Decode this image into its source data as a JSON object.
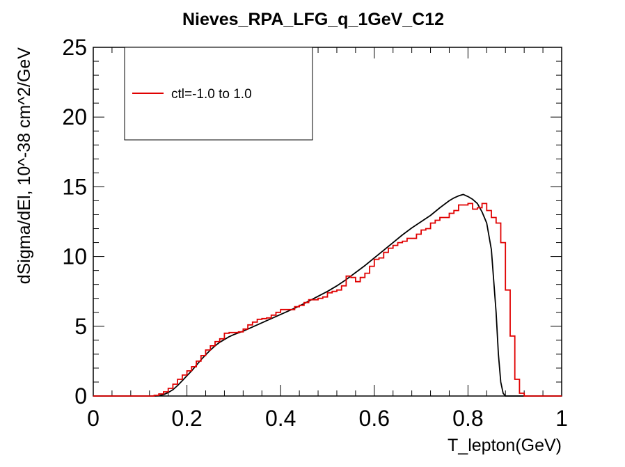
{
  "chart_data": {
    "type": "line",
    "title": "Nieves_RPA_LFG_q_1GeV_C12",
    "xlabel": "T_lepton(GeV)",
    "ylabel": "dSigma/dEl, 10^-38 cm^2/GeV",
    "xlim": [
      0,
      1
    ],
    "ylim": [
      0,
      25
    ],
    "x_ticks": [
      "0",
      "0.2",
      "0.4",
      "0.6",
      "0.8",
      "1"
    ],
    "y_ticks": [
      "0",
      "5",
      "10",
      "15",
      "20",
      "25"
    ],
    "grid": false,
    "legend_position": "top-left",
    "histogram_bin_width": 0.01,
    "series": [
      {
        "name": "ctl=-1.0 to 1.0",
        "style": "step",
        "color": "#e00000",
        "x_start": 0,
        "values": [
          0,
          0,
          0,
          0,
          0,
          0,
          0,
          0,
          0,
          0,
          0,
          0,
          0,
          0.05,
          0.15,
          0.3,
          0.55,
          0.85,
          1.2,
          1.5,
          1.8,
          2.1,
          2.5,
          2.9,
          3.3,
          3.6,
          3.9,
          4.1,
          4.5,
          4.55,
          4.55,
          4.6,
          4.8,
          5.1,
          5.3,
          5.5,
          5.55,
          5.6,
          5.8,
          6.0,
          6.2,
          6.2,
          6.2,
          6.4,
          6.5,
          6.7,
          6.9,
          6.9,
          7.0,
          7.1,
          7.4,
          7.5,
          7.6,
          7.9,
          8.6,
          8.5,
          8.2,
          8.5,
          8.8,
          9.3,
          9.8,
          9.9,
          10.3,
          10.6,
          10.8,
          11.0,
          11.1,
          11.3,
          11.3,
          11.6,
          11.9,
          12.0,
          12.4,
          12.6,
          12.8,
          12.8,
          13.1,
          13.3,
          13.7,
          13.7,
          13.8,
          13.4,
          13.5,
          13.8,
          13.3,
          12.8,
          12.4,
          11.0,
          7.6,
          4.3,
          1.2,
          0.2,
          0,
          0,
          0,
          0,
          0,
          0,
          0,
          0
        ]
      },
      {
        "style": "smooth",
        "color": "#000000",
        "points": [
          [
            0,
            0
          ],
          [
            0.13,
            0
          ],
          [
            0.14,
            0.02
          ],
          [
            0.15,
            0.1
          ],
          [
            0.16,
            0.25
          ],
          [
            0.17,
            0.45
          ],
          [
            0.18,
            0.75
          ],
          [
            0.19,
            1.1
          ],
          [
            0.2,
            1.45
          ],
          [
            0.21,
            1.8
          ],
          [
            0.22,
            2.2
          ],
          [
            0.23,
            2.6
          ],
          [
            0.24,
            2.95
          ],
          [
            0.25,
            3.3
          ],
          [
            0.26,
            3.6
          ],
          [
            0.27,
            3.85
          ],
          [
            0.28,
            4.05
          ],
          [
            0.29,
            4.25
          ],
          [
            0.3,
            4.4
          ],
          [
            0.32,
            4.65
          ],
          [
            0.34,
            4.95
          ],
          [
            0.36,
            5.25
          ],
          [
            0.38,
            5.55
          ],
          [
            0.4,
            5.85
          ],
          [
            0.42,
            6.15
          ],
          [
            0.44,
            6.45
          ],
          [
            0.46,
            6.8
          ],
          [
            0.48,
            7.15
          ],
          [
            0.5,
            7.5
          ],
          [
            0.52,
            7.9
          ],
          [
            0.54,
            8.35
          ],
          [
            0.56,
            8.85
          ],
          [
            0.58,
            9.35
          ],
          [
            0.6,
            9.9
          ],
          [
            0.62,
            10.45
          ],
          [
            0.64,
            11.0
          ],
          [
            0.66,
            11.55
          ],
          [
            0.68,
            12.05
          ],
          [
            0.7,
            12.5
          ],
          [
            0.72,
            12.95
          ],
          [
            0.74,
            13.5
          ],
          [
            0.76,
            14.0
          ],
          [
            0.77,
            14.2
          ],
          [
            0.78,
            14.35
          ],
          [
            0.79,
            14.45
          ],
          [
            0.8,
            14.3
          ],
          [
            0.81,
            14.1
          ],
          [
            0.82,
            13.8
          ],
          [
            0.83,
            13.2
          ],
          [
            0.84,
            12.4
          ],
          [
            0.85,
            10.5
          ],
          [
            0.86,
            6.0
          ],
          [
            0.865,
            3.0
          ],
          [
            0.87,
            1.0
          ],
          [
            0.875,
            0.2
          ],
          [
            0.88,
            0
          ],
          [
            1,
            0
          ]
        ]
      }
    ]
  }
}
